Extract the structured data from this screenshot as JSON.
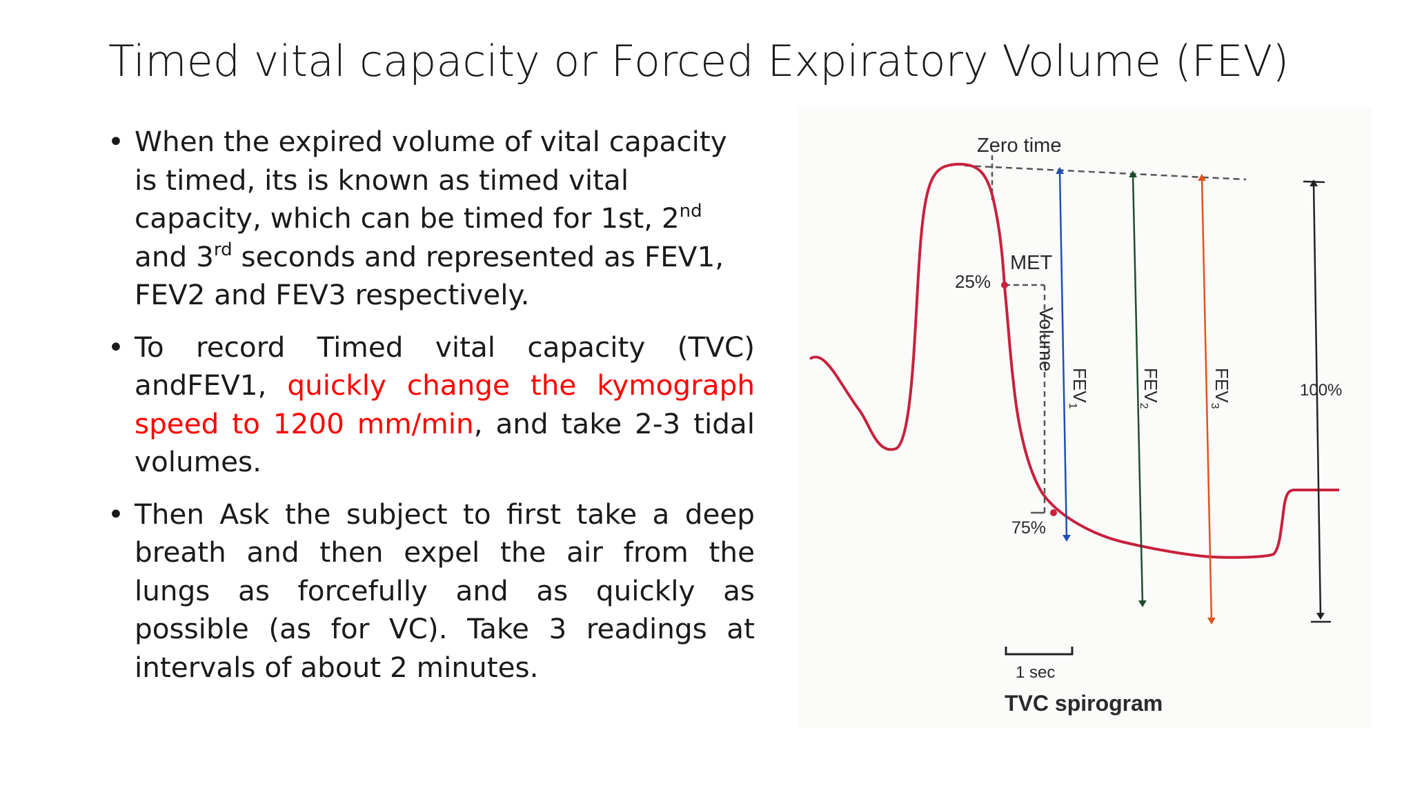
{
  "title": "Timed vital capacity or Forced  Expiratory Volume (FEV)",
  "bullets": {
    "b1": {
      "p1": "When the expired volume of vital capacity is timed, its is known as timed vital capacity, which can be timed for 1st, 2",
      "sup1": "nd",
      "p2": " and 3",
      "sup2": "rd",
      "p3": " seconds and represented as  FEV1, FEV2  and FEV3 respectively."
    },
    "b2": {
      "p1": "To record Timed vital capacity (TVC) andFEV1, ",
      "red": "quickly change the kymograph speed to 1200 mm/min",
      "p2": ", and take 2-3 tidal volumes."
    },
    "b3": {
      "text": " Then Ask the subject to first take a deep breath and then expel the air from the lungs as forcefully and as quickly as possible (as for VC). Take 3 readings at intervals of about 2 minutes."
    },
    "marker": "•"
  },
  "figure": {
    "zero_time": "Zero time",
    "met": "MET",
    "pct25": "25%",
    "pct75": "75%",
    "volume": "Volume",
    "fev1": "FEV",
    "fev1_sub": "1",
    "fev2": "FEV",
    "fev2_sub": "2",
    "fev3": "FEV",
    "fev3_sub": "3",
    "pct100": "100%",
    "scale": "1 sec",
    "caption": "TVC spirogram",
    "colors": {
      "curve": "#c8213c",
      "fev1": "#1f4fb5",
      "fev2": "#1e4d2b",
      "fev3": "#e0531a",
      "dashes": "#555555"
    }
  }
}
